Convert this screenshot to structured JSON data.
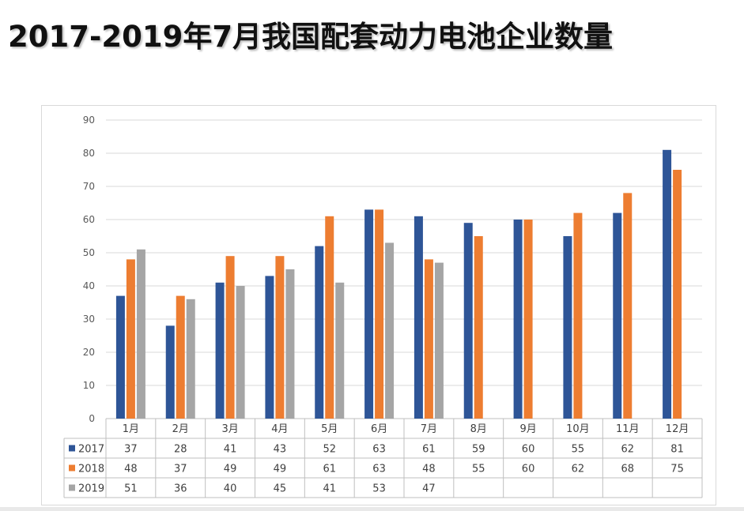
{
  "title": "2017-2019年7月我国配套动力电池企业数量",
  "chart_data": {
    "type": "bar",
    "categories": [
      "1月",
      "2月",
      "3月",
      "4月",
      "5月",
      "6月",
      "7月",
      "8月",
      "9月",
      "10月",
      "11月",
      "12月"
    ],
    "series": [
      {
        "name": "2017",
        "color": "#2e5597",
        "values": [
          37,
          28,
          41,
          43,
          52,
          63,
          61,
          59,
          60,
          55,
          62,
          81
        ]
      },
      {
        "name": "2018",
        "color": "#ed7d31",
        "values": [
          48,
          37,
          49,
          49,
          61,
          63,
          48,
          55,
          60,
          62,
          68,
          75
        ]
      },
      {
        "name": "2019",
        "color": "#a5a5a5",
        "values": [
          51,
          36,
          40,
          45,
          41,
          53,
          47,
          null,
          null,
          null,
          null,
          null
        ]
      }
    ],
    "ylim": [
      0,
      90
    ],
    "yticks": [
      0,
      10,
      20,
      30,
      40,
      50,
      60,
      70,
      80,
      90
    ],
    "grid": true,
    "legend": "data-table"
  }
}
